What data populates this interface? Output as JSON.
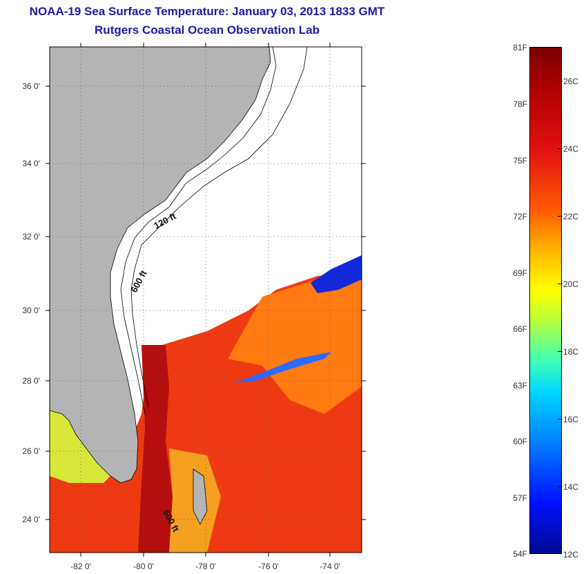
{
  "title": "NOAA-19 Sea Surface Temperature:  January 03, 2013 1833 GMT",
  "subtitle": "Rutgers Coastal Ocean Observation Lab",
  "y_ticks": [
    "36 0'",
    "34 0'",
    "32 0'",
    "30 0'",
    "28 0'",
    "26 0'",
    "24 0'"
  ],
  "x_ticks": [
    "-82 0'",
    "-80 0'",
    "-78 0'",
    "-76 0'",
    "-74 0'"
  ],
  "contours": {
    "shallow": "120 ft",
    "deep": "600 ft",
    "deep_south": "600 ft"
  },
  "colorbar": {
    "fahrenheit": [
      "81F",
      "78F",
      "75F",
      "72F",
      "69F",
      "66F",
      "63F",
      "60F",
      "57F",
      "54F"
    ],
    "celsius": [
      "26C",
      "24C",
      "22C",
      "20C",
      "18C",
      "16C",
      "14C",
      "12C"
    ]
  },
  "colors": {
    "title": "#1a1aa6",
    "land": "#b4b4b4",
    "ocean_blank": "#ffffff"
  }
}
